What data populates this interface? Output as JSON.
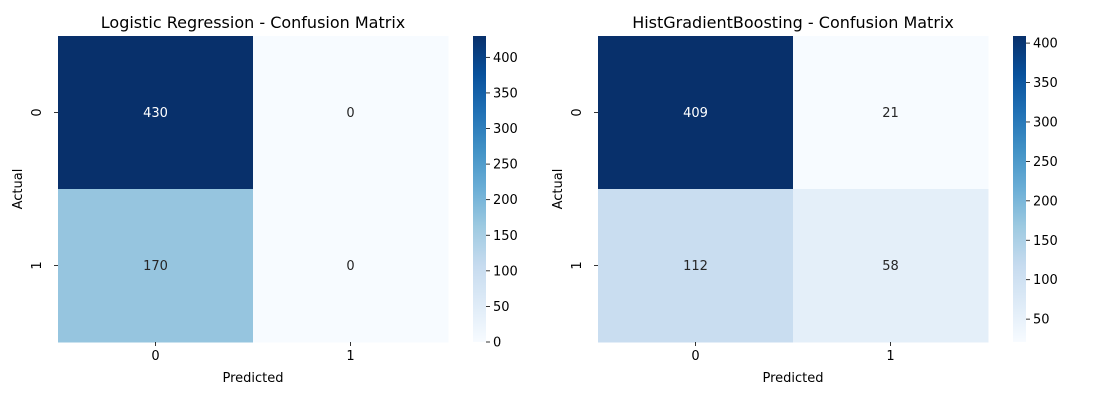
{
  "chart_data": [
    {
      "type": "heatmap",
      "title": "Logistic Regression - Confusion Matrix",
      "xlabel": "Predicted",
      "ylabel": "Actual",
      "x_categories": [
        "0",
        "1"
      ],
      "y_categories": [
        "0",
        "1"
      ],
      "values": [
        [
          430,
          0
        ],
        [
          170,
          0
        ]
      ],
      "annotations": [
        [
          "430",
          "0"
        ],
        [
          "170",
          "0"
        ]
      ],
      "colormap": "Blues",
      "colorbar": {
        "range": [
          0,
          430
        ],
        "ticks": [
          0,
          50,
          100,
          150,
          200,
          250,
          300,
          350,
          400
        ]
      }
    },
    {
      "type": "heatmap",
      "title": "HistGradientBoosting - Confusion Matrix",
      "xlabel": "Predicted",
      "ylabel": "Actual",
      "x_categories": [
        "0",
        "1"
      ],
      "y_categories": [
        "0",
        "1"
      ],
      "values": [
        [
          409,
          21
        ],
        [
          112,
          58
        ]
      ],
      "annotations": [
        [
          "409",
          "21"
        ],
        [
          "112",
          "58"
        ]
      ],
      "colormap": "Blues",
      "colorbar": {
        "range": [
          21,
          409
        ],
        "ticks": [
          50,
          100,
          150,
          200,
          250,
          300,
          350,
          400
        ]
      }
    }
  ]
}
